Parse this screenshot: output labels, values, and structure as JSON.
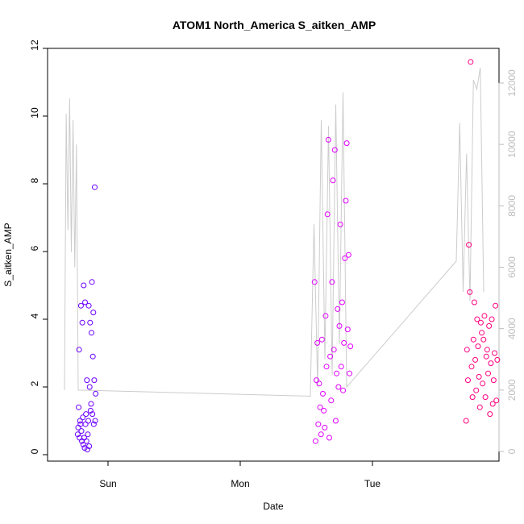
{
  "chart_data": {
    "type": "scatter",
    "title": "ATOM1 North_America S_aitken_AMP",
    "xlabel": "Date",
    "ylabel": "S_aitken_AMP",
    "x_ticks": [
      "Sun",
      "Mon",
      "Tue"
    ],
    "ylim": [
      0,
      12
    ],
    "y_ticks": [
      "0",
      "2",
      "4",
      "6",
      "8",
      "10",
      "12"
    ],
    "y2lim": [
      0,
      13000
    ],
    "y2_ticks": [
      "0",
      "2000",
      "4000",
      "6000",
      "8000",
      "10000",
      "12000"
    ],
    "colors": {
      "early": "#6a00ff",
      "mid": "#e000ff",
      "late": "#ff0080",
      "line": "#cccccc"
    },
    "series": [
      {
        "x": [
          "Sat 18:30",
          "Sat 18:35",
          "Sat 18:40",
          "Sat 18:45",
          "Sat 18:50",
          "Sat 18:55",
          "Sat 19:00",
          "Sat 19:05",
          "Sat 19:10",
          "Sat 19:15",
          "Sat 19:20",
          "Sat 19:25",
          "Sat 19:30",
          "Sat 19:35",
          "Sat 19:40",
          "Sat 19:45",
          "Sat 19:50",
          "Sat 19:55",
          "Sat 20:00",
          "Sat 20:05",
          "Sat 20:10",
          "Sat 20:15",
          "Sat 20:20",
          "Sat 20:25",
          "Sat 20:30",
          "Sat 20:35",
          "Sat 20:40",
          "Sat 20:45",
          "Sat 20:50",
          "Sat 20:55",
          "Sat 21:00",
          "Sat 21:05",
          "Sat 21:10",
          "Sat 21:15",
          "Sat 21:20",
          "Sat 21:25",
          "Sat 21:30",
          "Sat 21:35",
          "Sat 21:40",
          "Sat 21:45"
        ],
        "values": [
          0.6,
          0.8,
          1.4,
          3.1,
          0.5,
          1.0,
          0.9,
          4.4,
          0.7,
          0.4,
          3.9,
          1.1,
          0.3,
          5.0,
          0.5,
          0.2,
          4.5,
          0.9,
          1.2,
          0.4,
          2.2,
          0.15,
          0.6,
          1.0,
          4.4,
          0.25,
          2.0,
          3.9,
          1.3,
          1.5,
          3.6,
          5.1,
          1.2,
          2.9,
          4.2,
          0.9,
          2.2,
          7.9,
          1.0,
          1.8
        ]
      },
      {
        "x": [
          "Mon 13:30",
          "Mon 13:40",
          "Mon 13:50",
          "Mon 14:00",
          "Mon 14:10",
          "Mon 14:20",
          "Mon 14:30",
          "Mon 14:40",
          "Mon 14:50",
          "Mon 15:00",
          "Mon 15:10",
          "Mon 15:20",
          "Mon 15:30",
          "Mon 15:40",
          "Mon 15:50",
          "Mon 16:00",
          "Mon 16:10",
          "Mon 16:20",
          "Mon 16:30",
          "Mon 16:40",
          "Mon 16:50",
          "Mon 17:00",
          "Mon 17:10",
          "Mon 17:20",
          "Mon 17:30",
          "Mon 17:40",
          "Mon 17:50",
          "Mon 18:00",
          "Mon 18:10",
          "Mon 18:20",
          "Mon 18:30",
          "Mon 18:40",
          "Mon 18:50",
          "Mon 19:00",
          "Mon 19:10",
          "Mon 19:20",
          "Mon 19:30",
          "Mon 19:40",
          "Mon 19:50",
          "Mon 20:00"
        ],
        "values": [
          5.1,
          0.4,
          2.2,
          3.3,
          0.9,
          2.1,
          1.4,
          0.6,
          3.4,
          1.8,
          1.3,
          0.8,
          4.1,
          2.6,
          7.1,
          9.3,
          0.5,
          2.9,
          1.6,
          5.1,
          8.1,
          3.1,
          9.0,
          1.0,
          2.4,
          4.3,
          2.0,
          3.8,
          6.8,
          2.6,
          4.5,
          1.9,
          3.3,
          5.8,
          7.5,
          9.2,
          3.7,
          5.9,
          2.4,
          3.2
        ]
      },
      {
        "x": [
          "Tue 17:00",
          "Tue 17:10",
          "Tue 17:20",
          "Tue 17:30",
          "Tue 17:40",
          "Tue 17:50",
          "Tue 18:00",
          "Tue 18:10",
          "Tue 18:20",
          "Tue 18:30",
          "Tue 18:40",
          "Tue 18:50",
          "Tue 19:00",
          "Tue 19:10",
          "Tue 19:20",
          "Tue 19:30",
          "Tue 19:40",
          "Tue 19:50",
          "Tue 20:00",
          "Tue 20:10",
          "Tue 20:20",
          "Tue 20:30",
          "Tue 20:40",
          "Tue 20:50",
          "Tue 21:00",
          "Tue 21:10",
          "Tue 21:20",
          "Tue 21:30",
          "Tue 21:40",
          "Tue 21:50",
          "Tue 22:00",
          "Tue 22:10",
          "Tue 22:20",
          "Tue 22:30",
          "Tue 22:40"
        ],
        "values": [
          1.0,
          3.1,
          2.2,
          6.2,
          4.8,
          11.6,
          2.6,
          1.7,
          3.4,
          4.5,
          2.8,
          1.9,
          4.0,
          3.2,
          2.3,
          1.4,
          3.9,
          3.6,
          2.1,
          3.4,
          4.1,
          1.7,
          2.9,
          3.1,
          2.4,
          3.8,
          1.2,
          2.7,
          4.0,
          1.5,
          2.2,
          3.0,
          4.4,
          1.6,
          2.8
        ]
      }
    ],
    "line_y2_anchor_points": [
      [
        0,
        2000
      ],
      [
        1,
        11500
      ],
      [
        2,
        2100
      ],
      [
        3,
        1800
      ],
      [
        4,
        2100
      ],
      [
        5,
        8000
      ],
      [
        6,
        2200
      ],
      [
        7,
        11000
      ],
      [
        8,
        6000
      ],
      [
        9,
        12500
      ]
    ]
  }
}
